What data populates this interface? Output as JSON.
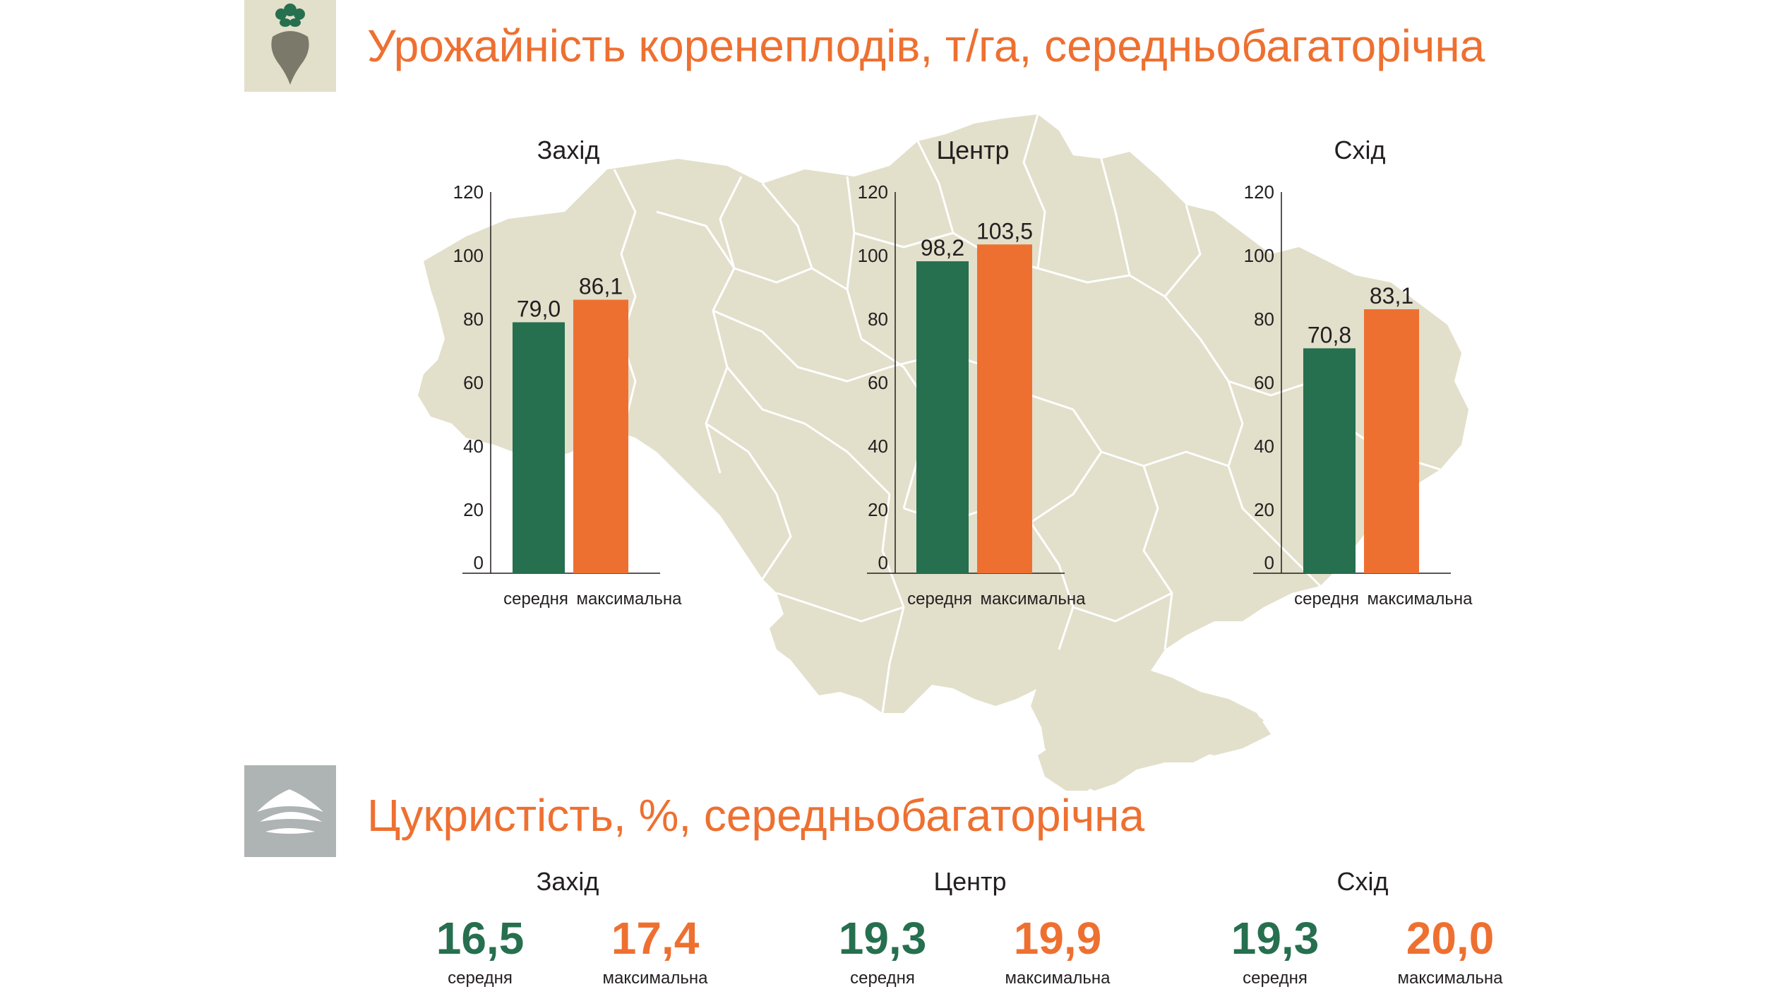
{
  "yield_section": {
    "title": "Урожайність коренеплодів, т/га, середньобагаторічна",
    "icon": "beet-icon"
  },
  "sugar_section": {
    "title": "Цукристість, %, середньобагаторічна",
    "icon": "sugar-pile-icon",
    "regions": [
      {
        "name": "Захід",
        "avg": "16,5",
        "max": "17,4",
        "avg_label": "середня",
        "max_label": "максимальна"
      },
      {
        "name": "Центр",
        "avg": "19,3",
        "max": "19,9",
        "avg_label": "середня",
        "max_label": "максимальна"
      },
      {
        "name": "Схід",
        "avg": "19,3",
        "max": "20,0",
        "avg_label": "середня",
        "max_label": "максимальна"
      }
    ]
  },
  "colors": {
    "average": "#266f4f",
    "maximum": "#ee7031",
    "map": "#e2dfcb",
    "title": "#ee7031"
  },
  "chart_data": [
    {
      "type": "bar",
      "title": "Захід",
      "categories": [
        "середня",
        "максимальна"
      ],
      "values": [
        79.0,
        86.1
      ],
      "value_labels": [
        "79,0",
        "86,1"
      ],
      "ylim": [
        0,
        120
      ],
      "yticks": [
        0,
        20,
        40,
        60,
        80,
        100,
        120
      ],
      "grid": false
    },
    {
      "type": "bar",
      "title": "Центр",
      "categories": [
        "середня",
        "максимальна"
      ],
      "values": [
        98.2,
        103.5
      ],
      "value_labels": [
        "98,2",
        "103,5"
      ],
      "ylim": [
        0,
        120
      ],
      "yticks": [
        0,
        20,
        40,
        60,
        80,
        100,
        120
      ],
      "grid": false
    },
    {
      "type": "bar",
      "title": "Схід",
      "categories": [
        "середня",
        "максимальна"
      ],
      "values": [
        70.8,
        83.1
      ],
      "value_labels": [
        "70,8",
        "83,1"
      ],
      "ylim": [
        0,
        120
      ],
      "yticks": [
        0,
        20,
        40,
        60,
        80,
        100,
        120
      ],
      "grid": false
    }
  ]
}
